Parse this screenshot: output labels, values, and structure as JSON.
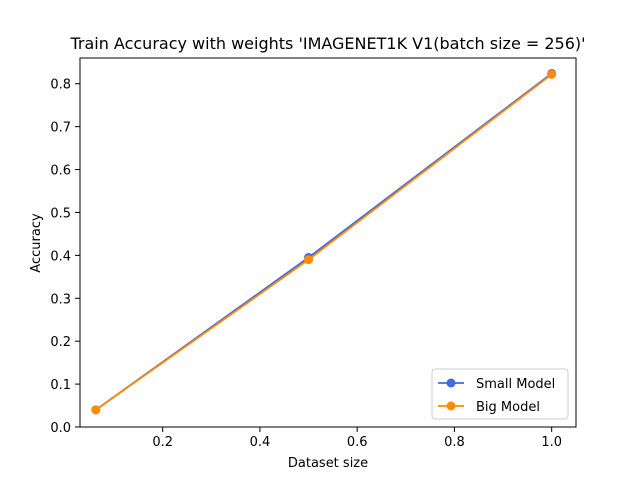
{
  "chart_data": {
    "type": "line",
    "title": "Train Accuracy with weights 'IMAGENET1K V1(batch size = 256)'",
    "xlabel": "Dataset size",
    "ylabel": "Accuracy",
    "xlim": [
      0.03,
      1.05
    ],
    "ylim": [
      0.0,
      0.86
    ],
    "xticks": [
      0.2,
      0.4,
      0.6,
      0.8,
      1.0
    ],
    "xtick_labels": [
      "0.2",
      "0.4",
      "0.6",
      "0.8",
      "1.0"
    ],
    "yticks": [
      0.0,
      0.1,
      0.2,
      0.3,
      0.4,
      0.5,
      0.6,
      0.7,
      0.8
    ],
    "ytick_labels": [
      "0.0",
      "0.1",
      "0.2",
      "0.3",
      "0.4",
      "0.5",
      "0.6",
      "0.7",
      "0.8"
    ],
    "grid": false,
    "legend_position": "lower-right",
    "series": [
      {
        "name": "Small Model",
        "color": "#4169e1",
        "marker": "circle",
        "x": [
          0.0625,
          0.5,
          1.0
        ],
        "y": [
          0.04,
          0.395,
          0.824
        ]
      },
      {
        "name": "Big Model",
        "color": "#ff8c00",
        "marker": "circle",
        "x": [
          0.0625,
          0.5,
          1.0
        ],
        "y": [
          0.04,
          0.39,
          0.822
        ]
      }
    ]
  }
}
